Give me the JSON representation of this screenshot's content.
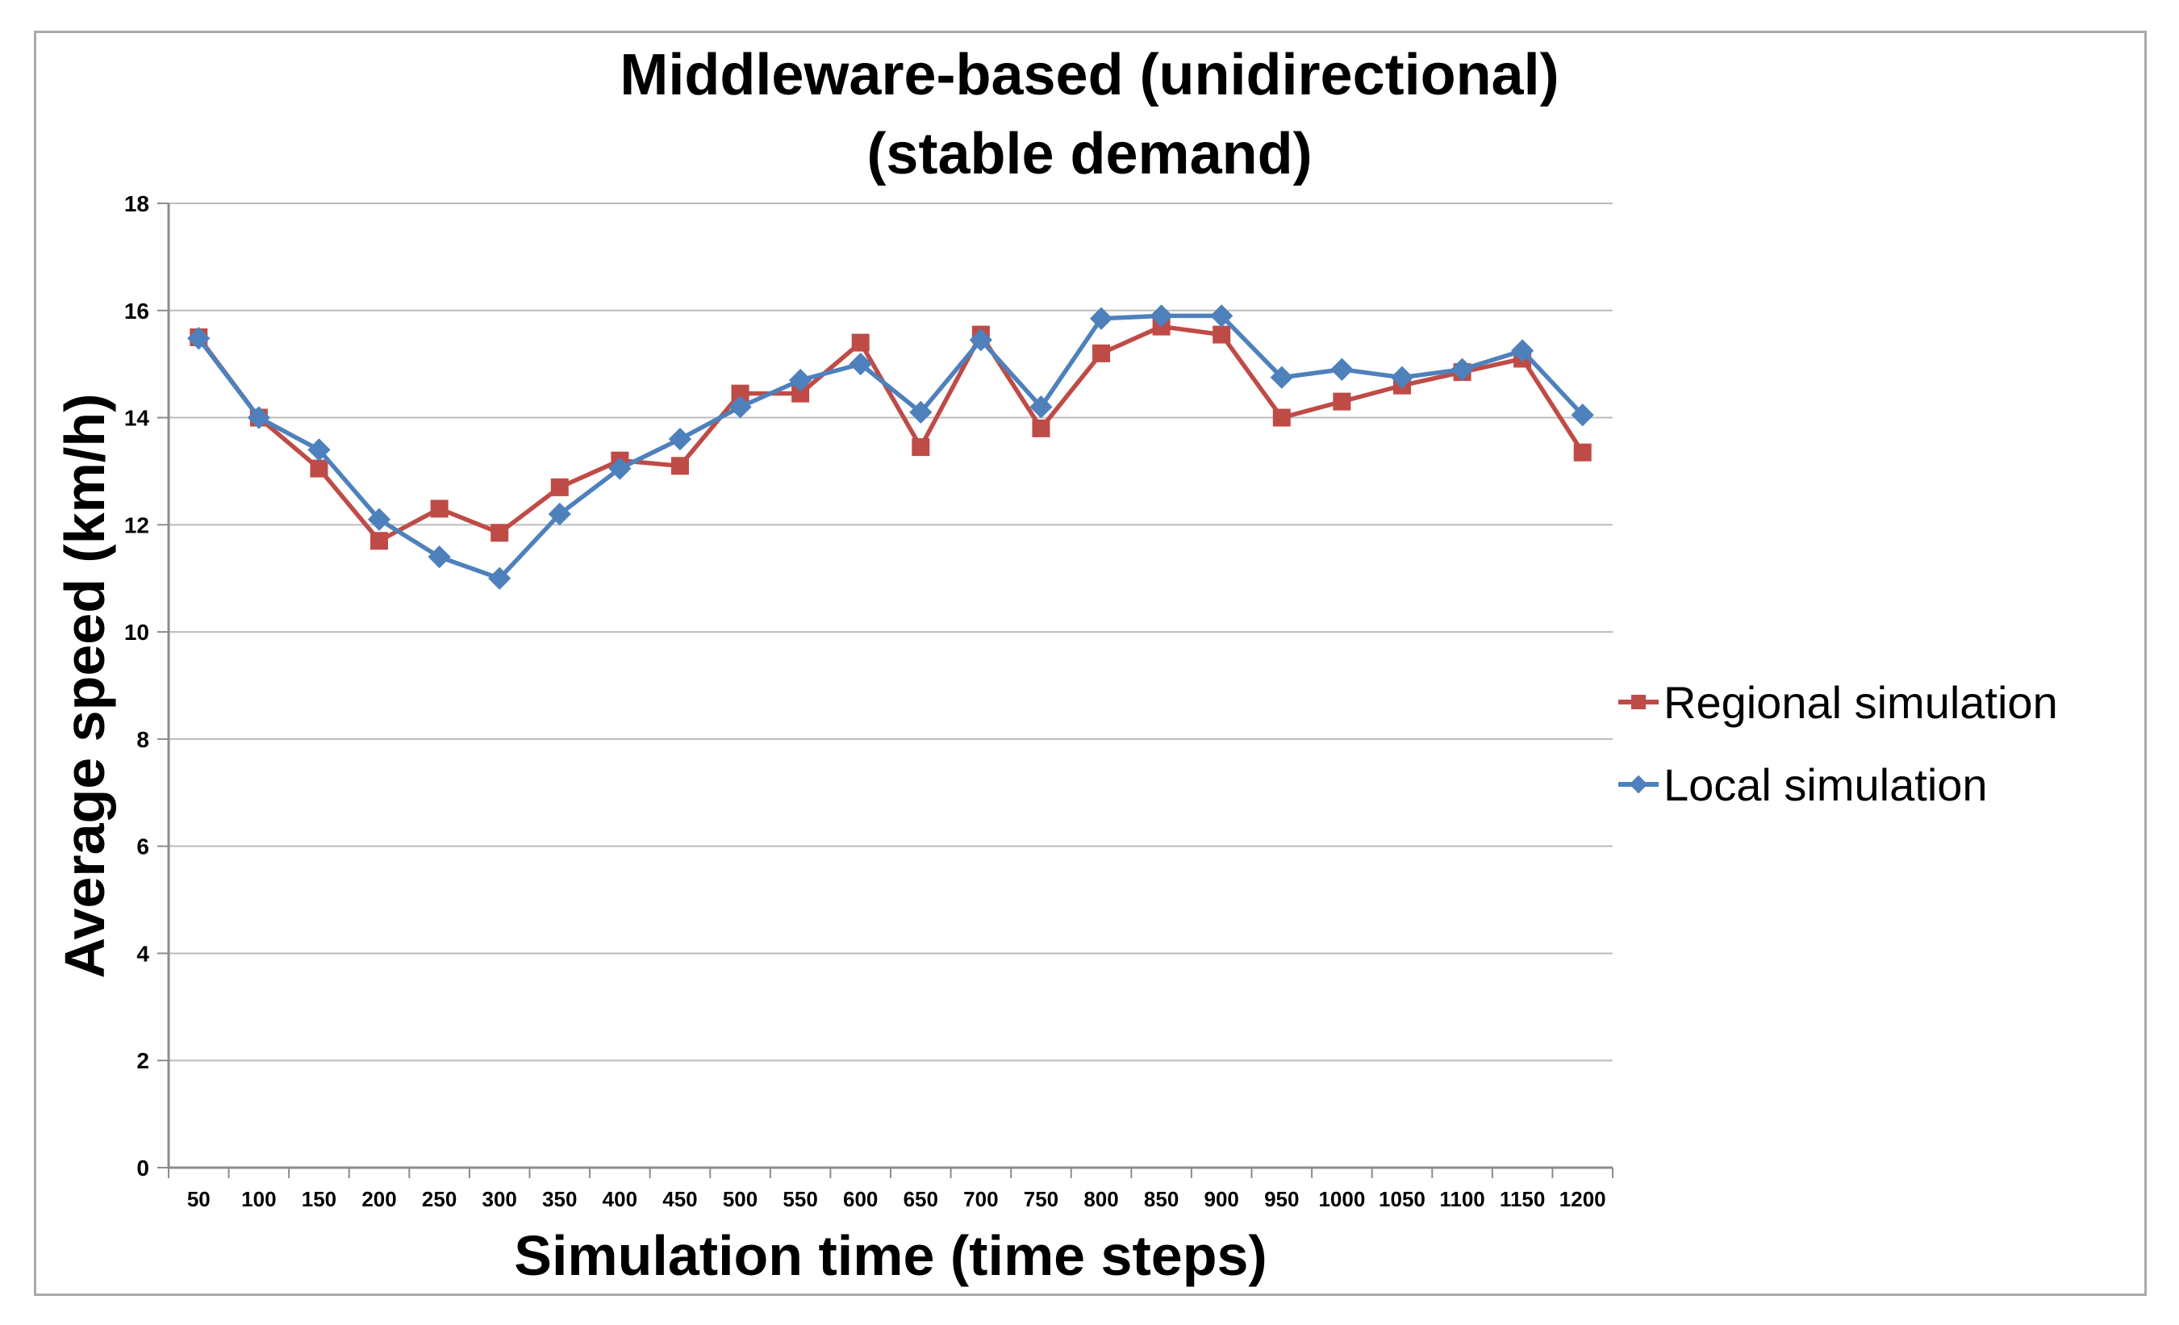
{
  "title": {
    "line1": "Middleware-based (unidirectional)",
    "line2": "(stable demand)"
  },
  "colors": {
    "regional_series": "#BF4B47",
    "local_series": "#4E81BC",
    "gridline": "#BCBCBC",
    "axis_line": "#8C8C8C",
    "frame_border": "#A9A9A9",
    "text": "#000000"
  },
  "chart_data": {
    "type": "line",
    "title": "Middleware-based (unidirectional) (stable demand)",
    "xlabel": "Simulation time (time steps)",
    "ylabel": "Average speed (km/h)",
    "x": [
      50,
      100,
      150,
      200,
      250,
      300,
      350,
      400,
      450,
      500,
      550,
      600,
      650,
      700,
      750,
      800,
      850,
      900,
      950,
      1000,
      1050,
      1100,
      1150,
      1200
    ],
    "series": [
      {
        "name": "Regional simulation",
        "color": "#BF4B47",
        "marker": "square",
        "values": [
          15.5,
          14.0,
          13.05,
          11.7,
          12.3,
          11.85,
          12.7,
          13.2,
          13.1,
          14.45,
          14.45,
          15.4,
          13.45,
          15.55,
          13.8,
          15.2,
          15.7,
          15.55,
          14.0,
          14.3,
          14.6,
          14.85,
          15.1,
          13.35
        ]
      },
      {
        "name": "Local simulation",
        "color": "#4E81BC",
        "marker": "diamond",
        "values": [
          15.48,
          14.0,
          13.4,
          12.1,
          11.4,
          11.0,
          12.2,
          13.05,
          13.6,
          14.2,
          14.7,
          15.0,
          14.1,
          15.45,
          14.2,
          15.85,
          15.9,
          15.9,
          14.75,
          14.9,
          14.75,
          14.9,
          15.25,
          14.05
        ]
      }
    ],
    "ylim": [
      0,
      18
    ],
    "y_tick_step": 2,
    "y_ticks": [
      0,
      2,
      4,
      6,
      8,
      10,
      12,
      14,
      16,
      18
    ],
    "grid": true,
    "legend_position": "right"
  }
}
